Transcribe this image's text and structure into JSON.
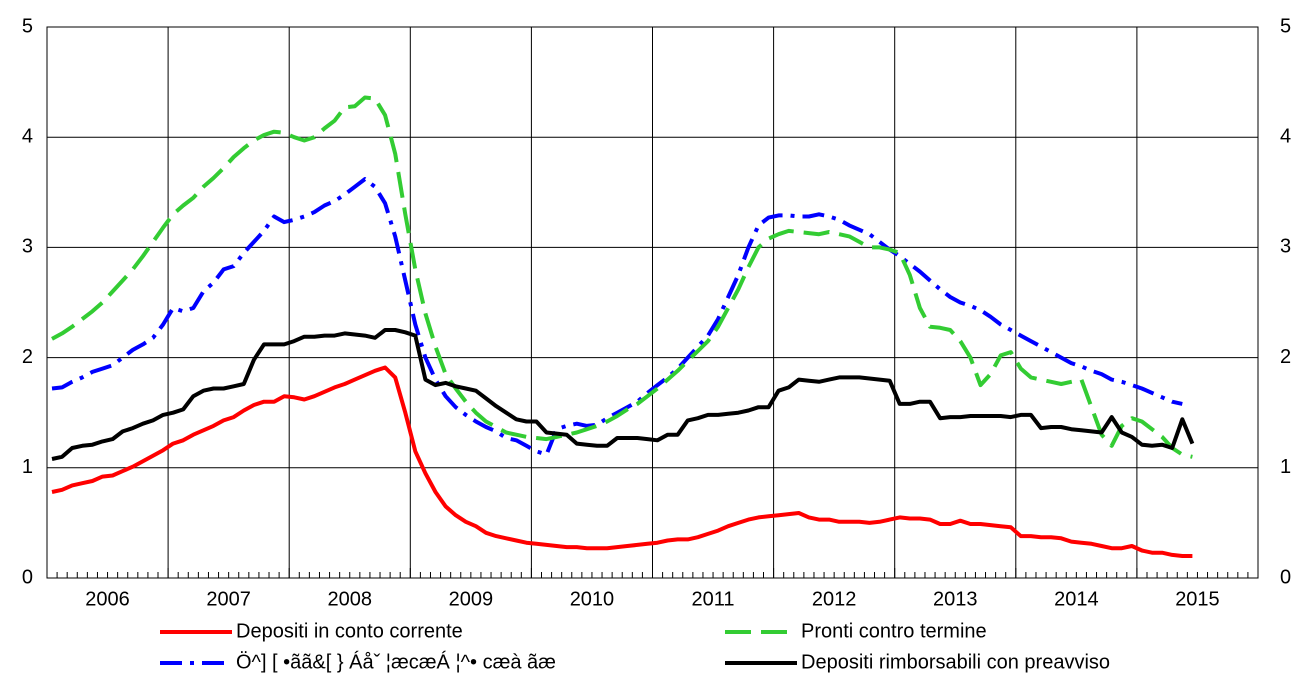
{
  "chart_data": {
    "type": "line",
    "categories": [
      null,
      null,
      null,
      null,
      null,
      null,
      "2006",
      null,
      null,
      null,
      null,
      null,
      null,
      null,
      null,
      null,
      null,
      null,
      "2007",
      null,
      null,
      null,
      null,
      null,
      null,
      null,
      null,
      null,
      null,
      null,
      "2008",
      null,
      null,
      null,
      null,
      null,
      null,
      null,
      null,
      null,
      null,
      null,
      "2009",
      null,
      null,
      null,
      null,
      null,
      null,
      null,
      null,
      null,
      null,
      null,
      "2010",
      null,
      null,
      null,
      null,
      null,
      null,
      null,
      null,
      null,
      null,
      null,
      "2011",
      null,
      null,
      null,
      null,
      null,
      null,
      null,
      null,
      null,
      null,
      null,
      "2012",
      null,
      null,
      null,
      null,
      null,
      null,
      null,
      null,
      null,
      null,
      null,
      "2013",
      null,
      null,
      null,
      null,
      null,
      null,
      null,
      null,
      null,
      null,
      null,
      "2014",
      null,
      null,
      null,
      null,
      null,
      null,
      null,
      null,
      null,
      null,
      null,
      "2015",
      null,
      null,
      null,
      null,
      null
    ],
    "series": [
      {
        "name": "Depositi in conto corrente",
        "color": "#ff0000",
        "style": "solid",
        "values": [
          0.78,
          0.8,
          0.84,
          0.86,
          0.88,
          0.92,
          0.93,
          0.97,
          1.01,
          1.06,
          1.11,
          1.16,
          1.22,
          1.25,
          1.3,
          1.34,
          1.38,
          1.43,
          1.46,
          1.52,
          1.57,
          1.6,
          1.6,
          1.65,
          1.64,
          1.62,
          1.65,
          1.69,
          1.73,
          1.76,
          1.8,
          1.84,
          1.88,
          1.91,
          1.82,
          1.5,
          1.15,
          0.95,
          0.78,
          0.65,
          0.57,
          0.51,
          0.47,
          0.41,
          0.38,
          0.36,
          0.34,
          0.32,
          0.31,
          0.3,
          0.29,
          0.28,
          0.28,
          0.27,
          0.27,
          0.27,
          0.28,
          0.29,
          0.3,
          0.31,
          0.32,
          0.34,
          0.35,
          0.35,
          0.37,
          0.4,
          0.43,
          0.47,
          0.5,
          0.53,
          0.55,
          0.56,
          0.57,
          0.58,
          0.59,
          0.55,
          0.53,
          0.53,
          0.51,
          0.51,
          0.51,
          0.5,
          0.51,
          0.53,
          0.55,
          0.54,
          0.54,
          0.53,
          0.49,
          0.49,
          0.52,
          0.49,
          0.49,
          0.48,
          0.47,
          0.46,
          0.38,
          0.38,
          0.37,
          0.37,
          0.36,
          0.33,
          0.32,
          0.31,
          0.29,
          0.27,
          0.27,
          0.29,
          0.25,
          0.23,
          0.23,
          0.21,
          0.2,
          0.2,
          null,
          null,
          null,
          null,
          null,
          null
        ]
      },
      {
        "name": "Ö^] [ •ãã&[ } Áåˇ ¦æcæÁ ¦^• cæà ãæ",
        "color": "#0000ff",
        "style": "dashdot",
        "values": [
          1.72,
          1.73,
          1.78,
          1.82,
          1.87,
          1.9,
          1.93,
          2.0,
          2.07,
          2.12,
          2.18,
          2.3,
          2.45,
          2.42,
          2.45,
          2.6,
          2.68,
          2.8,
          2.83,
          2.95,
          3.05,
          3.15,
          3.28,
          3.23,
          3.25,
          3.28,
          3.32,
          3.38,
          3.42,
          3.48,
          3.55,
          3.62,
          3.55,
          3.4,
          3.1,
          2.7,
          2.3,
          2.0,
          1.8,
          1.65,
          1.55,
          1.48,
          1.42,
          1.37,
          1.33,
          1.27,
          1.25,
          1.2,
          1.15,
          1.12,
          1.35,
          1.38,
          1.4,
          1.38,
          1.39,
          1.45,
          1.5,
          1.55,
          1.6,
          1.68,
          1.75,
          1.82,
          1.9,
          2.0,
          2.1,
          2.2,
          2.35,
          2.55,
          2.75,
          3.0,
          3.2,
          3.27,
          3.29,
          3.29,
          3.28,
          3.28,
          3.3,
          3.28,
          3.25,
          3.2,
          3.16,
          3.12,
          3.05,
          2.98,
          2.92,
          2.85,
          2.78,
          2.7,
          2.62,
          2.55,
          2.5,
          2.47,
          2.43,
          2.37,
          2.3,
          2.25,
          2.2,
          2.15,
          2.1,
          2.05,
          2.0,
          1.95,
          1.92,
          1.88,
          1.85,
          1.8,
          1.78,
          1.75,
          1.72,
          1.68,
          1.64,
          1.6,
          1.58,
          null,
          null,
          null,
          null,
          null,
          null,
          null
        ]
      },
      {
        "name": "Pronti contro termine",
        "color": "#33cc33",
        "style": "dashed",
        "values": [
          2.17,
          2.22,
          2.28,
          2.35,
          2.42,
          2.5,
          2.6,
          2.7,
          2.8,
          2.92,
          3.05,
          3.18,
          3.3,
          3.38,
          3.45,
          3.55,
          3.63,
          3.72,
          3.82,
          3.9,
          3.97,
          4.02,
          4.05,
          4.04,
          4.0,
          3.97,
          4.0,
          4.08,
          4.15,
          4.27,
          4.28,
          4.36,
          4.35,
          4.2,
          3.85,
          3.3,
          2.8,
          2.4,
          2.1,
          1.85,
          1.72,
          1.6,
          1.5,
          1.42,
          1.37,
          1.32,
          1.3,
          1.28,
          1.27,
          1.26,
          1.28,
          1.3,
          1.32,
          1.35,
          1.38,
          1.42,
          1.47,
          1.53,
          1.58,
          1.65,
          1.72,
          1.8,
          1.88,
          1.97,
          2.06,
          2.15,
          2.28,
          2.45,
          2.62,
          2.82,
          3.0,
          3.08,
          3.12,
          3.15,
          3.14,
          3.13,
          3.12,
          3.14,
          3.12,
          3.1,
          3.05,
          3.0,
          3.0,
          2.98,
          2.95,
          2.75,
          2.45,
          2.28,
          2.27,
          2.25,
          2.15,
          2.0,
          1.75,
          1.85,
          2.02,
          2.05,
          1.9,
          1.82,
          1.8,
          1.78,
          1.76,
          1.78,
          1.8,
          1.55,
          1.3,
          1.2,
          1.38,
          1.45,
          1.42,
          1.35,
          1.28,
          1.18,
          1.12,
          1.1,
          null,
          null,
          null,
          null,
          null,
          null
        ]
      },
      {
        "name": "Depositi rimborsabili con preavviso",
        "color": "#000000",
        "style": "solid",
        "values": [
          1.08,
          1.1,
          1.18,
          1.2,
          1.21,
          1.24,
          1.26,
          1.33,
          1.36,
          1.4,
          1.43,
          1.48,
          1.5,
          1.53,
          1.65,
          1.7,
          1.72,
          1.72,
          1.74,
          1.76,
          1.98,
          2.12,
          2.12,
          2.12,
          2.15,
          2.19,
          2.19,
          2.2,
          2.2,
          2.22,
          2.21,
          2.2,
          2.18,
          2.25,
          2.25,
          2.23,
          2.2,
          1.8,
          1.75,
          1.77,
          1.74,
          1.72,
          1.7,
          1.63,
          1.56,
          1.5,
          1.44,
          1.42,
          1.42,
          1.32,
          1.31,
          1.3,
          1.22,
          1.21,
          1.2,
          1.2,
          1.27,
          1.27,
          1.27,
          1.26,
          1.25,
          1.3,
          1.3,
          1.43,
          1.45,
          1.48,
          1.48,
          1.49,
          1.5,
          1.52,
          1.55,
          1.55,
          1.7,
          1.73,
          1.8,
          1.79,
          1.78,
          1.8,
          1.82,
          1.82,
          1.82,
          1.81,
          1.8,
          1.79,
          1.58,
          1.58,
          1.6,
          1.6,
          1.45,
          1.46,
          1.46,
          1.47,
          1.47,
          1.47,
          1.47,
          1.46,
          1.48,
          1.48,
          1.36,
          1.37,
          1.37,
          1.35,
          1.34,
          1.33,
          1.32,
          1.46,
          1.32,
          1.28,
          1.21,
          1.2,
          1.21,
          1.18,
          1.44,
          1.22,
          null,
          null,
          null,
          null,
          null,
          null
        ]
      }
    ],
    "ylim": [
      0,
      5
    ],
    "yticks": [
      0,
      1,
      2,
      3,
      4,
      5
    ],
    "grid": true
  }
}
